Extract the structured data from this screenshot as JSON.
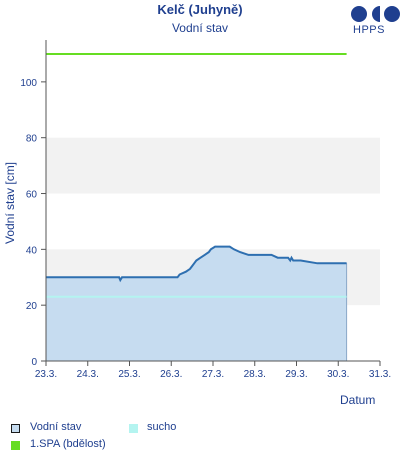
{
  "chart_data": {
    "type": "area",
    "title": "Kelč (Juhyně)",
    "subtitle": "Vodní stav",
    "ylabel": "Vodní stav [cm]",
    "xlabel": "Datum",
    "ylim": [
      0,
      115
    ],
    "xlim": [
      "23.3.",
      "31.3."
    ],
    "yticks": [
      0,
      20,
      40,
      60,
      80,
      100
    ],
    "xticks": [
      "23.3.",
      "24.3.",
      "25.3.",
      "26.3.",
      "27.3.",
      "28.3.",
      "29.3.",
      "30.3.",
      "31.3."
    ],
    "grid_bands": [
      [
        20,
        40
      ],
      [
        60,
        80
      ]
    ],
    "series": [
      {
        "name": "Vodní stav",
        "color": "#2e6fb0",
        "fill": "#c6dcf0",
        "points": [
          [
            0.0,
            30
          ],
          [
            1.0,
            30
          ],
          [
            1.75,
            30
          ],
          [
            1.78,
            29
          ],
          [
            1.82,
            30
          ],
          [
            2.0,
            30
          ],
          [
            2.5,
            30
          ],
          [
            3.15,
            30
          ],
          [
            3.2,
            31
          ],
          [
            3.35,
            32
          ],
          [
            3.45,
            33
          ],
          [
            3.5,
            34
          ],
          [
            3.55,
            35
          ],
          [
            3.6,
            36
          ],
          [
            3.7,
            37
          ],
          [
            3.8,
            38
          ],
          [
            3.9,
            39
          ],
          [
            3.95,
            40
          ],
          [
            4.05,
            41
          ],
          [
            4.4,
            41
          ],
          [
            4.5,
            40
          ],
          [
            4.65,
            39
          ],
          [
            4.85,
            38
          ],
          [
            5.4,
            38
          ],
          [
            5.55,
            37
          ],
          [
            5.8,
            37
          ],
          [
            5.85,
            36
          ],
          [
            5.88,
            37
          ],
          [
            5.92,
            36
          ],
          [
            6.1,
            36
          ],
          [
            6.5,
            35
          ],
          [
            7.2,
            35
          ]
        ]
      },
      {
        "name": "sucho",
        "color": "#b4f4f0",
        "value": 23
      },
      {
        "name": "1.SPA (bdělost)",
        "color": "#66dd22",
        "value": 110
      }
    ]
  },
  "logo_text": "HPPS",
  "legend": [
    {
      "label": "Vodní stav",
      "swatch_fill": "#c6dcf0",
      "swatch_border": "#1a1a1a"
    },
    {
      "label": "sucho",
      "swatch_fill": "#b4f4f0",
      "swatch_border": "#b4f4f0"
    },
    {
      "label": "1.SPA (bdělost)",
      "swatch_fill": "#66dd22",
      "swatch_border": "#66dd22"
    }
  ]
}
